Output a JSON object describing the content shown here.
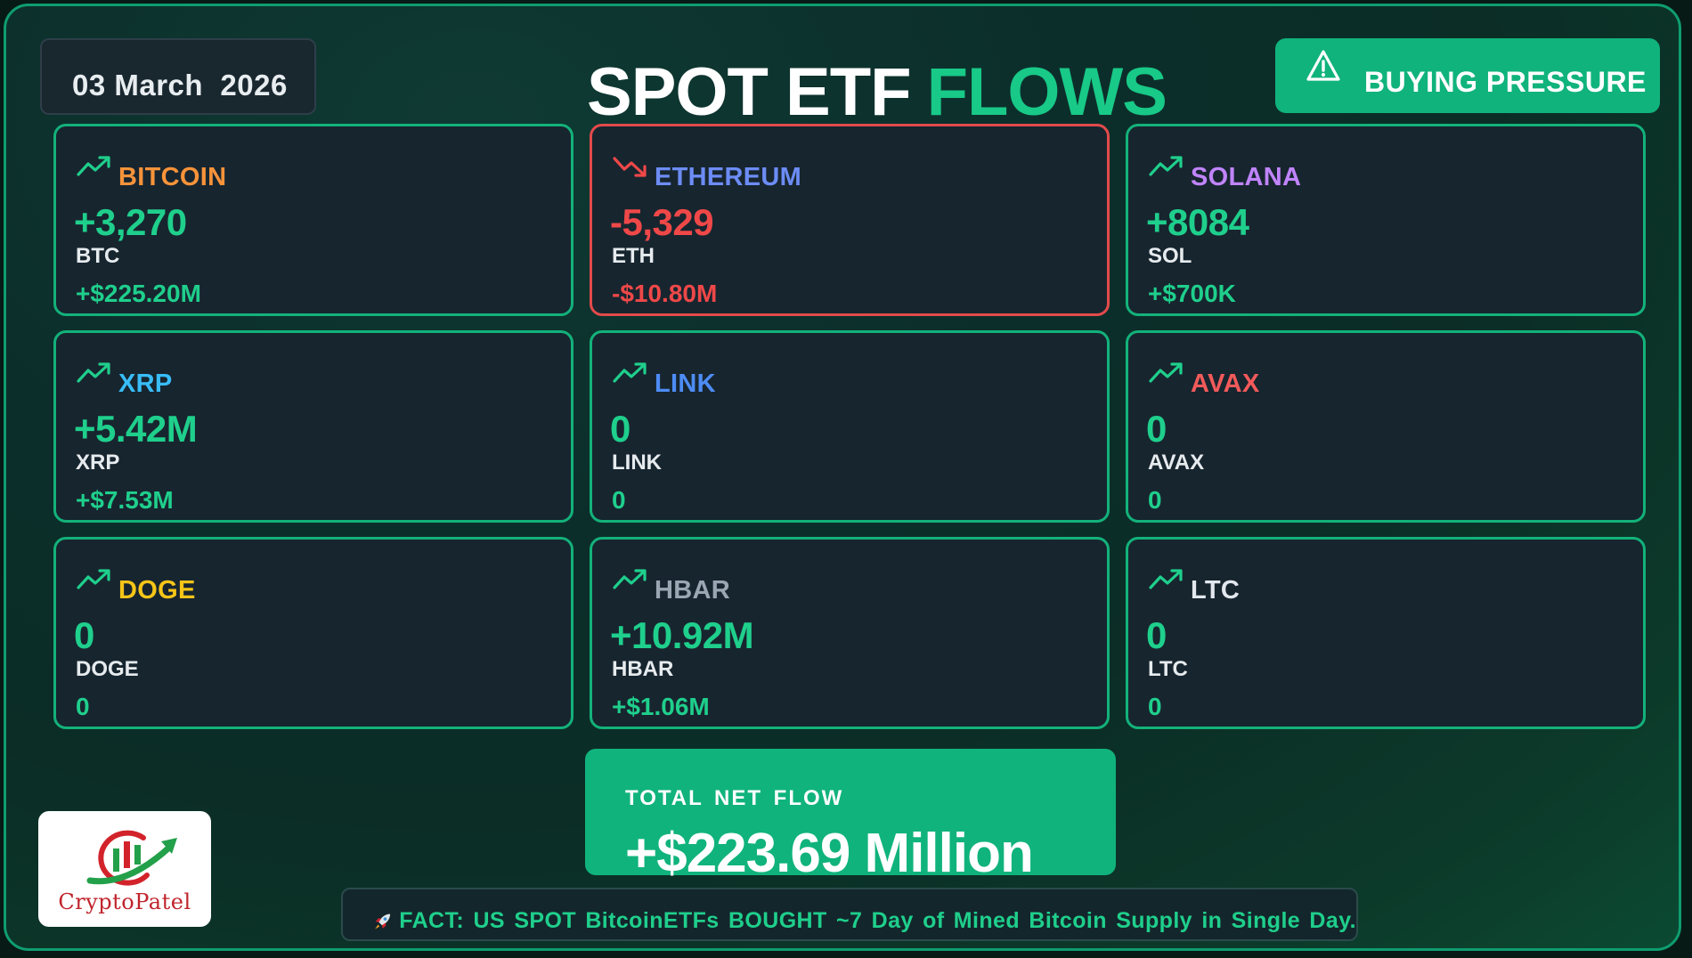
{
  "header": {
    "date": "03 March  2026",
    "title_white": "SPOT ETF",
    "title_green": "FLOWS",
    "pressure_label": "BUYING PRESSURE"
  },
  "cards": [
    {
      "name": "BITCOIN",
      "amount": "+3,270",
      "symbol": "BTC",
      "usd": "+$225.20M",
      "trend": "up",
      "name_color": "#f7933a"
    },
    {
      "name": "ETHEREUM",
      "amount": "-5,329",
      "symbol": "ETH",
      "usd": "-$10.80M",
      "trend": "down",
      "name_color": "#6c8cf5"
    },
    {
      "name": "SOLANA",
      "amount": "+8084",
      "symbol": "SOL",
      "usd": "+$700K",
      "trend": "up",
      "name_color": "#c084fc"
    },
    {
      "name": "XRP",
      "amount": "+5.42M",
      "symbol": "XRP",
      "usd": "+$7.53M",
      "trend": "up",
      "name_color": "#38bdf8"
    },
    {
      "name": "LINK",
      "amount": "0",
      "symbol": "LINK",
      "usd": "0",
      "trend": "up",
      "name_color": "#4d8cf5"
    },
    {
      "name": "AVAX",
      "amount": "0",
      "symbol": "AVAX",
      "usd": "0",
      "trend": "up",
      "name_color": "#f25a5a"
    },
    {
      "name": "DOGE",
      "amount": "0",
      "symbol": "DOGE",
      "usd": "0",
      "trend": "up",
      "name_color": "#f5c518"
    },
    {
      "name": "HBAR",
      "amount": "+10.92M",
      "symbol": "HBAR",
      "usd": "+$1.06M",
      "trend": "up",
      "name_color": "#9aa7b3"
    },
    {
      "name": "LTC",
      "amount": "0",
      "symbol": "LTC",
      "usd": "0",
      "trend": "up",
      "name_color": "#e2e8ee"
    }
  ],
  "total": {
    "label": "TOTAL NET FLOW",
    "value": "+$223.69 Million"
  },
  "logo": {
    "brand": "CryptoPatel",
    "icon": "candlestick-chart-icon"
  },
  "fact": {
    "icon": "rocket-icon",
    "text": "FACT: US SPOT BitcoinETFs  BOUGHT ~7 Day of Mined Bitcoin Supply in Single Day."
  },
  "colors": {
    "positive": "#1fcf8c",
    "negative": "#ef4848",
    "accent": "#10b37c",
    "card_bg": "#17252f"
  }
}
